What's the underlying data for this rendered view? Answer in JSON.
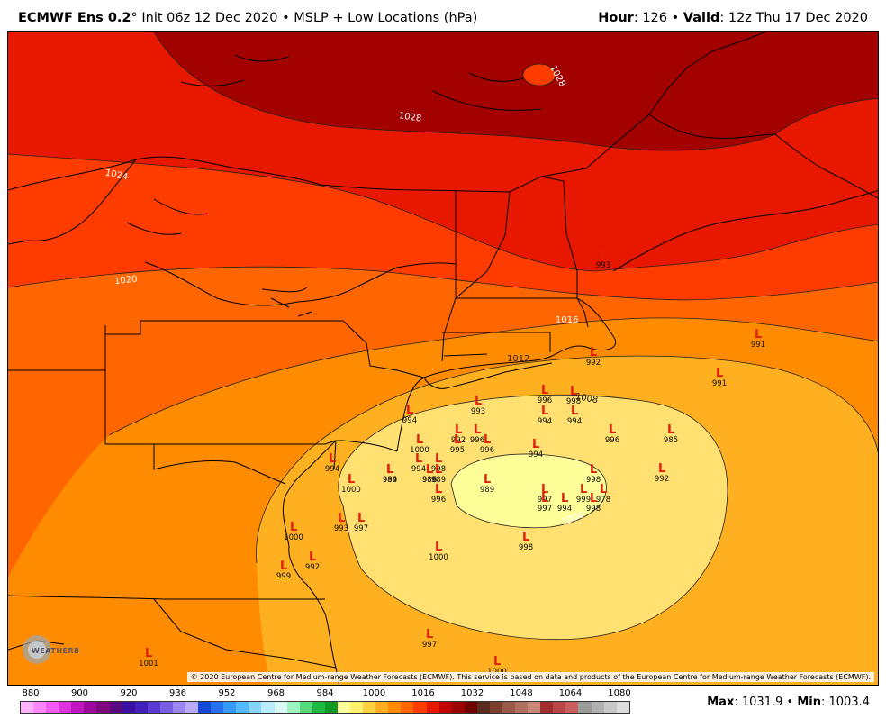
{
  "header": {
    "model": "ECMWF Ens 0.2",
    "deg": "°",
    "init": "Init 06z 12 Dec 2020",
    "sep": "•",
    "product": "MSLP + Low Locations (hPa)",
    "hour_label": "Hour",
    "hour_value": "126",
    "valid_label": "Valid",
    "valid_value": "12z Thu 17 Dec 2020"
  },
  "isobar_labels": [
    "1028",
    "1028",
    "1024",
    "1020",
    "1016",
    "1012",
    "1008",
    "1004"
  ],
  "lows": [
    {
      "v": "991"
    },
    {
      "v": "991"
    },
    {
      "v": "993"
    },
    {
      "v": "992"
    },
    {
      "v": "994"
    },
    {
      "v": "996"
    },
    {
      "v": "998"
    },
    {
      "v": "994"
    },
    {
      "v": "994"
    },
    {
      "v": "996"
    },
    {
      "v": "985"
    },
    {
      "v": "992"
    },
    {
      "v": "993"
    },
    {
      "v": "992"
    },
    {
      "v": "996"
    },
    {
      "v": "995"
    },
    {
      "v": "996"
    },
    {
      "v": "994"
    },
    {
      "v": "1000"
    },
    {
      "v": "986"
    },
    {
      "v": "994"
    },
    {
      "v": "998"
    },
    {
      "v": "989"
    },
    {
      "v": "989"
    },
    {
      "v": "986"
    },
    {
      "v": "996"
    },
    {
      "v": "989"
    },
    {
      "v": "997"
    },
    {
      "v": "997"
    },
    {
      "v": "994"
    },
    {
      "v": "999"
    },
    {
      "v": "998"
    },
    {
      "v": "978"
    },
    {
      "v": "998"
    },
    {
      "v": "998"
    },
    {
      "v": "1000"
    },
    {
      "v": "994"
    },
    {
      "v": "1000"
    },
    {
      "v": "993"
    },
    {
      "v": "997"
    },
    {
      "v": "1000"
    },
    {
      "v": "992"
    },
    {
      "v": "999"
    },
    {
      "v": "994"
    },
    {
      "v": "997"
    },
    {
      "v": "1001"
    },
    {
      "v": "1000"
    }
  ],
  "copyright": "© 2020 European Centre for Medium-range Weather Forecasts (ECMWF). This service is based on data and products of the European Centre for Medium-range Weather Forecasts (ECMWF).",
  "logo": {
    "text": "WEATHERBELL"
  },
  "colorbar": {
    "ticks": [
      "880",
      "900",
      "920",
      "936",
      "952",
      "968",
      "984",
      "1000",
      "1016",
      "1032",
      "1048",
      "1064",
      "1080"
    ],
    "colors": [
      "#ffb3ff",
      "#ff88ff",
      "#f25ef2",
      "#e033e0",
      "#c018c0",
      "#9a0a9a",
      "#7a0a7a",
      "#5a0a80",
      "#3a10a0",
      "#4020b8",
      "#5a3ad0",
      "#7a60e0",
      "#9a88ee",
      "#b8aaf4",
      "#1848d8",
      "#2870f0",
      "#3898f8",
      "#58b8fc",
      "#88d4fc",
      "#b8ecfc",
      "#d8f8f4",
      "#a0f0c0",
      "#58d878",
      "#20b840",
      "#109828",
      "#ffffa0",
      "#fff070",
      "#ffd040",
      "#ffb020",
      "#ff8c00",
      "#ff6600",
      "#ff3c00",
      "#e81800",
      "#c00000",
      "#9a0000",
      "#700000",
      "#5a2a20",
      "#7a4030",
      "#9a5a48",
      "#b07060",
      "#c88878",
      "#a03030",
      "#b84848",
      "#c86060",
      "#9a9a9a",
      "#b0b0b0",
      "#c8c8c8",
      "#dcdcdc"
    ]
  },
  "stats": {
    "max_label": "Max",
    "max_value": "1031.9",
    "sep": "•",
    "min_label": "Min",
    "min_value": "1003.4"
  }
}
